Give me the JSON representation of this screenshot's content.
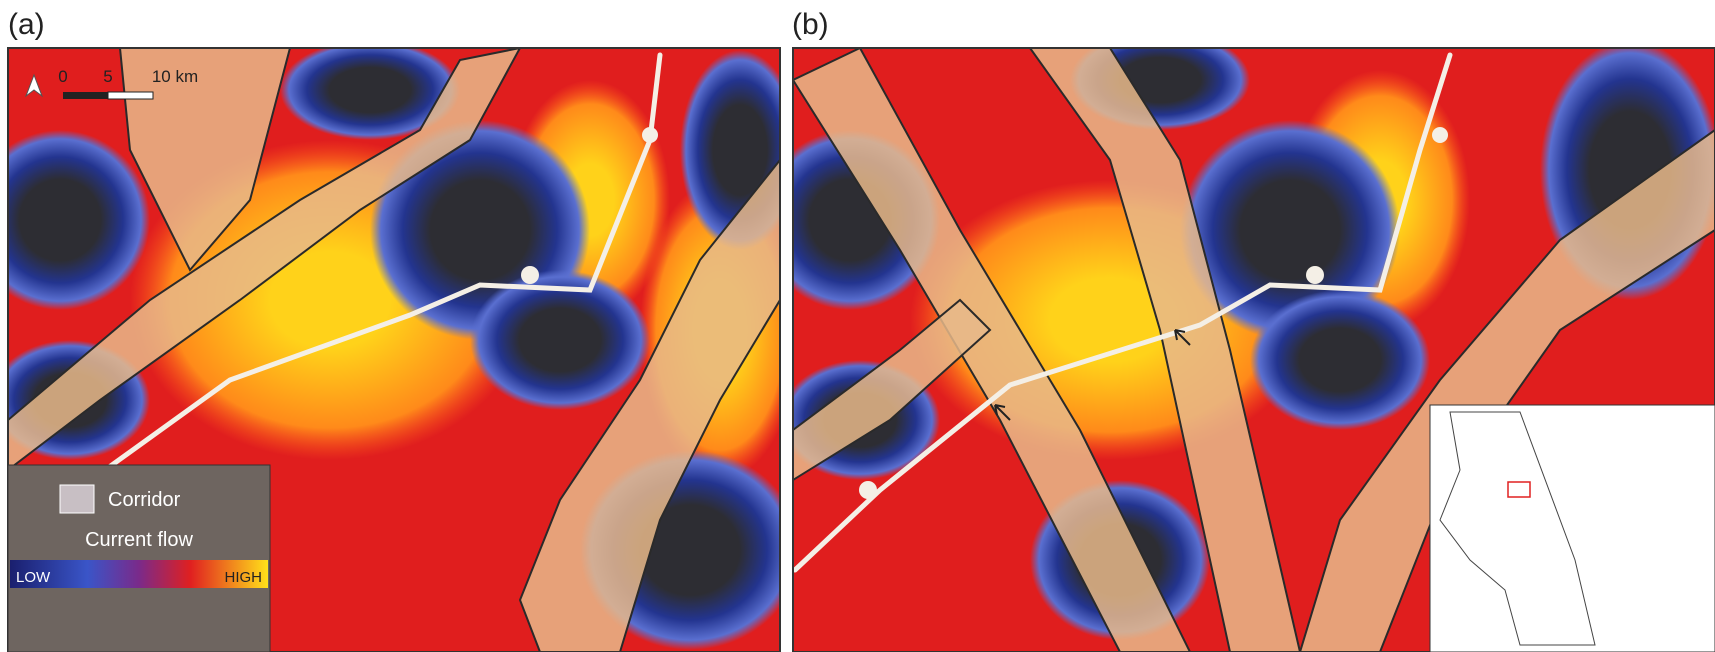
{
  "panels": [
    {
      "label": "(a)"
    },
    {
      "label": "(b)"
    }
  ],
  "scale_bar": {
    "ticks": [
      "0",
      "5",
      "10 km"
    ]
  },
  "legend": {
    "corridor": "Corridor",
    "title": "Current flow",
    "low": "LOW",
    "high": "HIGH"
  }
}
